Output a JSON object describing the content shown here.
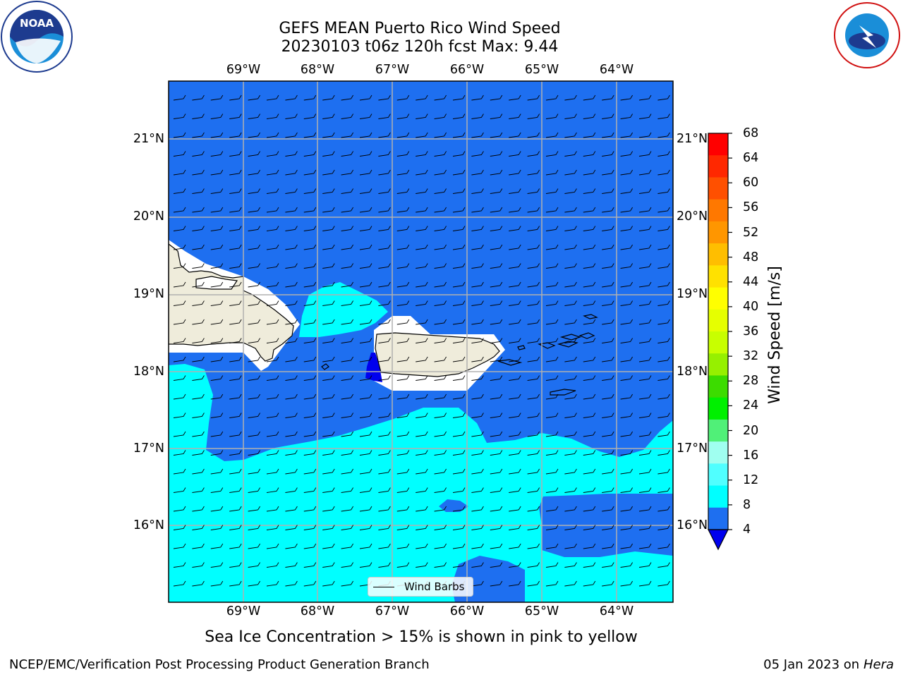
{
  "header": {
    "title_line1": "GEFS MEAN Puerto Rico Wind Speed",
    "title_line2": "20230103 t06z 120h fcst   Max: 9.44"
  },
  "logos": {
    "left_text": "NOAA",
    "left_ring_text": "NATIONAL OCEANIC AND ATMOSPHERIC ADMINISTRATION · U.S. DEPARTMENT OF COMMERCE",
    "right_ring_text": "NATIONAL WEATHER SERVICE"
  },
  "map": {
    "lon_labels": [
      "69°W",
      "68°W",
      "67°W",
      "66°W",
      "65°W",
      "64°W"
    ],
    "lat_labels": [
      "21°N",
      "20°N",
      "19°N",
      "18°N",
      "17°N",
      "16°N"
    ],
    "legend_label": "Wind Barbs",
    "colors": {
      "ocean_dark": "#1e6ff0",
      "ocean_light": "#00ffff",
      "land": "#efecdb",
      "gridline": "#b0b0b0"
    }
  },
  "colorbar": {
    "label": "Wind Speed [m/s]",
    "ticks": [
      "68",
      "64",
      "60",
      "56",
      "52",
      "48",
      "44",
      "40",
      "36",
      "32",
      "28",
      "24",
      "20",
      "16",
      "12",
      "8",
      "4"
    ],
    "colors": [
      "#ff0000",
      "#ff2800",
      "#ff5000",
      "#ff7800",
      "#ff9600",
      "#ffbe00",
      "#ffe100",
      "#ffff00",
      "#e6ff00",
      "#c8ff00",
      "#96f000",
      "#3cdc00",
      "#00f000",
      "#50f078",
      "#a0fff0",
      "#50ffff",
      "#00ffff",
      "#1e6ff0"
    ],
    "under_color": "#0000ee"
  },
  "footer": {
    "note": "Sea Ice Concentration > 15% is shown in pink to yellow",
    "left": "NCEP/EMC/Verification Post Processing Product Generation Branch",
    "right_prefix": "05 Jan 2023 on ",
    "right_machine": "Hera"
  }
}
